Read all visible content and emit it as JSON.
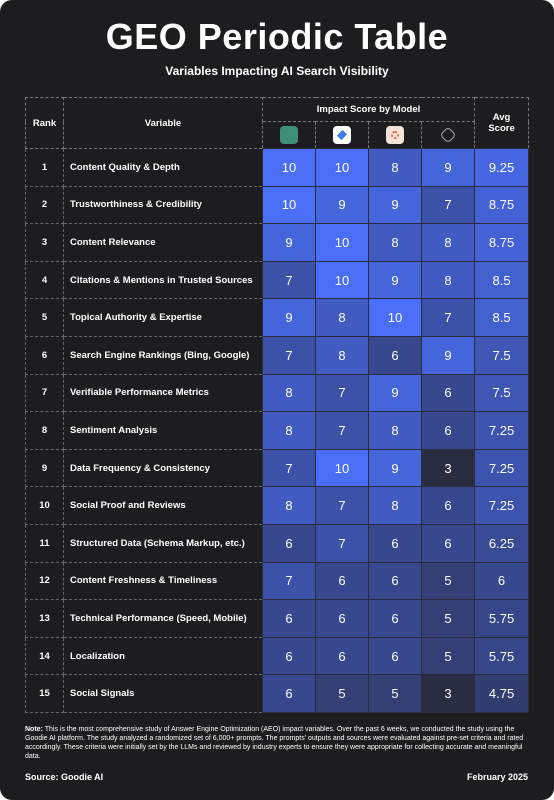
{
  "header": {
    "title": "GEO Periodic Table",
    "subtitle": "Variables Impacting AI Search Visibility"
  },
  "table": {
    "columns": [
      "Rank",
      "Variable",
      "Impact Score by Model",
      "Avg Score"
    ],
    "rows": [
      [
        1,
        "Content Quality & Depth",
        10,
        10,
        8,
        9,
        9.25
      ],
      [
        2,
        "Trustworthiness & Credibility",
        10,
        9,
        9,
        7,
        8.75
      ],
      [
        3,
        "Content Relevance",
        9,
        10,
        8,
        8,
        8.75
      ],
      [
        4,
        "Citations & Mentions in Trusted Sources",
        7,
        10,
        9,
        8,
        8.5
      ],
      [
        5,
        "Topical Authority & Expertise",
        9,
        8,
        10,
        7,
        8.5
      ],
      [
        6,
        "Search Engine Rankings (Bing, Google)",
        7,
        8,
        6,
        9,
        7.5
      ],
      [
        7,
        "Verifiable Performance Metrics",
        8,
        7,
        9,
        6,
        7.5
      ],
      [
        8,
        "Sentiment Analysis",
        8,
        7,
        8,
        6,
        7.25
      ],
      [
        9,
        "Data Frequency & Consistency",
        7,
        10,
        9,
        3,
        7.25
      ],
      [
        10,
        "Social Proof and Reviews",
        8,
        7,
        8,
        6,
        7.25
      ],
      [
        11,
        "Structured Data (Schema Markup, etc.)",
        6,
        7,
        6,
        6,
        6.25
      ],
      [
        12,
        "Content Freshness & Timeliness",
        7,
        6,
        6,
        5,
        6
      ],
      [
        13,
        "Technical Performance (Speed, Mobile)",
        6,
        6,
        6,
        5,
        5.75
      ],
      [
        14,
        "Localization",
        6,
        6,
        6,
        5,
        5.75
      ],
      [
        15,
        "Social Signals",
        6,
        5,
        5,
        3,
        4.75
      ]
    ]
  },
  "footer": {
    "note_label": "Note:",
    "note": "This is the most comprehensive study of Answer Engine Optimization (AEO) impact variables. Over the past 6 weeks, we conducted the study using the Goodie AI platform. The study analyzed a randomized set of 6,000+ prompts. The prompts' outputs and sources were evaluated against pre-set criteria and rated accordingly. These criteria were initially set by the LLMs and reviewed by industry experts to ensure they were appropriate for collecting accurate and meaningful data.",
    "source": "Source: Goodie AI",
    "date": "February 2025"
  }
}
